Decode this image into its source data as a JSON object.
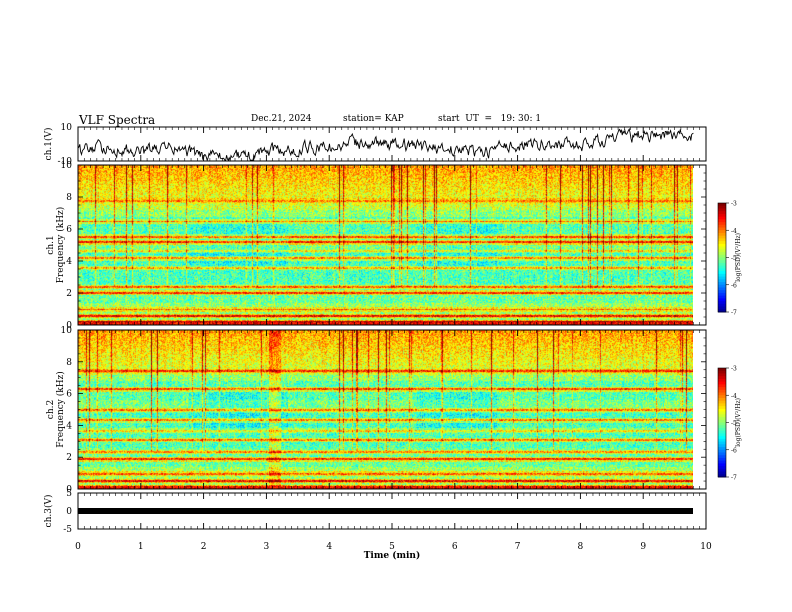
{
  "header": {
    "title": "VLF Spectra",
    "date": "Dec.21, 2024",
    "station": "station= KAP",
    "start": "start  UT  =   19: 30: 1"
  },
  "chart_data": [
    {
      "type": "line",
      "name": "ch1-waveform",
      "ylabel": "ch.1(V)",
      "ylim": [
        -10,
        10
      ],
      "yticks": [
        "10",
        "-10"
      ],
      "xlim": [
        0,
        10
      ],
      "approx_baseline_anchors": [
        [
          0,
          -4
        ],
        [
          0.5,
          -2
        ],
        [
          1,
          -5
        ],
        [
          1.5,
          -2
        ],
        [
          2,
          -8
        ],
        [
          2.5,
          -8
        ],
        [
          3,
          -5
        ],
        [
          3.5,
          -3
        ],
        [
          4,
          -2
        ],
        [
          4.5,
          1
        ],
        [
          5,
          0
        ],
        [
          5.5,
          -2
        ],
        [
          6,
          -3
        ],
        [
          6.5,
          -5
        ],
        [
          7,
          0
        ],
        [
          7.5,
          0
        ],
        [
          8,
          -1
        ],
        [
          8.5,
          3
        ],
        [
          9,
          5
        ],
        [
          9.5,
          6
        ],
        [
          9.8,
          4
        ]
      ]
    },
    {
      "type": "heatmap",
      "name": "ch1-spectrogram",
      "ylabel": "ch.1\nFrequency  (kHz)",
      "ylim": [
        0,
        10
      ],
      "yticks": [
        "0",
        "2",
        "4",
        "6",
        "8",
        "10"
      ],
      "xlim": [
        0,
        10
      ],
      "colorbar": {
        "label": "log(PSD)(V²/Hz)",
        "range": [
          -7,
          -3
        ],
        "ticks": [
          "-3",
          "-4",
          "-5",
          "-6",
          "-7"
        ]
      }
    },
    {
      "type": "heatmap",
      "name": "ch2-spectrogram",
      "ylabel": "ch.2\nFrequency  (kHz)",
      "ylim": [
        0,
        10
      ],
      "yticks": [
        "0",
        "2",
        "4",
        "6",
        "8",
        "10"
      ],
      "xlim": [
        0,
        10
      ],
      "colorbar": {
        "label": "log(PSD)(V²/Hz)",
        "range": [
          -7,
          -3
        ],
        "ticks": [
          "-3",
          "-4",
          "-5",
          "-6",
          "-7"
        ]
      }
    },
    {
      "type": "line",
      "name": "ch3-waveform",
      "ylabel": "ch.3(V)",
      "ylim": [
        -5,
        5
      ],
      "yticks": [
        "5",
        "0",
        "-5"
      ],
      "xlim": [
        0,
        10
      ],
      "approx_value": 0
    }
  ],
  "xaxis": {
    "label": "Time  (min)",
    "ticks": [
      "0",
      "1",
      "2",
      "3",
      "4",
      "5",
      "6",
      "7",
      "8",
      "9",
      "10"
    ]
  }
}
